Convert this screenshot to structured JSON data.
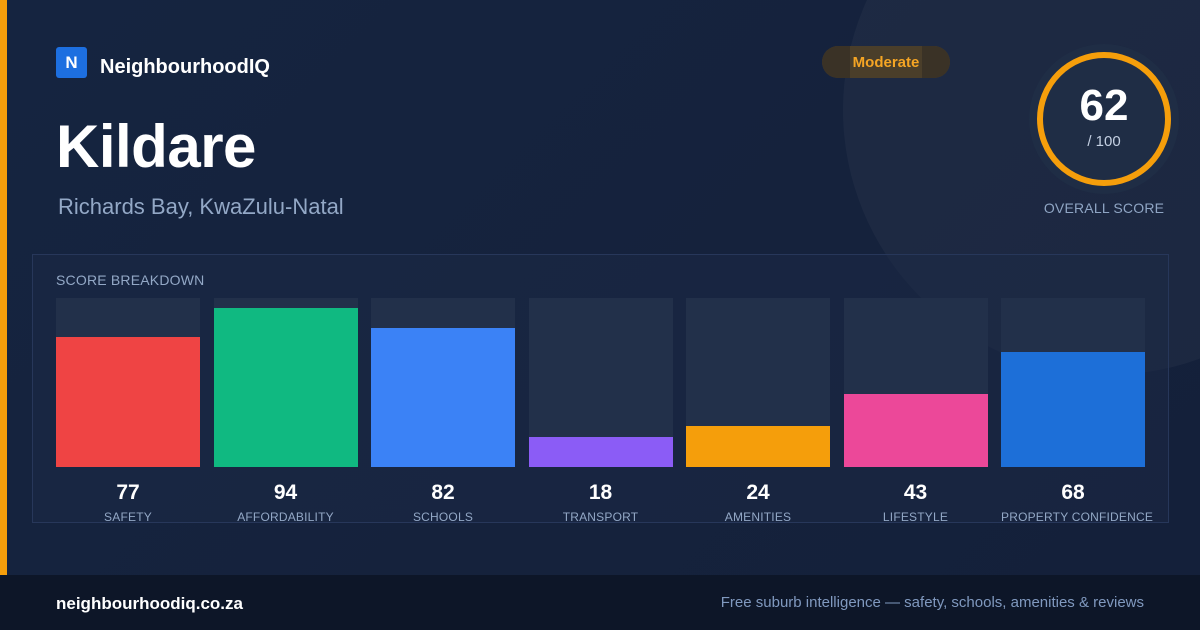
{
  "brand": {
    "logo_letter": "N",
    "name": "NeighbourhoodIQ",
    "accent_color": "#1d6fe0"
  },
  "header": {
    "title": "Kildare",
    "subtitle": "Richards Bay, KwaZulu-Natal",
    "badge": "Moderate",
    "badge_color": "#f5a524"
  },
  "overall": {
    "score": "62",
    "max": "/ 100",
    "caption": "OVERALL SCORE",
    "fraction": 0.62,
    "ring_color": "#f59e0b"
  },
  "breakdown": {
    "title": "SCORE BREAKDOWN",
    "scale_max": 100,
    "items": [
      {
        "label": "SAFETY",
        "value": 77,
        "display": "77",
        "color": "#ef4444"
      },
      {
        "label": "AFFORDABILITY",
        "value": 94,
        "display": "94",
        "color": "#10b981"
      },
      {
        "label": "SCHOOLS",
        "value": 82,
        "display": "82",
        "color": "#3b82f6"
      },
      {
        "label": "TRANSPORT",
        "value": 18,
        "display": "18",
        "color": "#8b5cf6"
      },
      {
        "label": "AMENITIES",
        "value": 24,
        "display": "24",
        "color": "#f59e0b"
      },
      {
        "label": "LIFESTYLE",
        "value": 43,
        "display": "43",
        "color": "#ec4899"
      },
      {
        "label": "PROPERTY CONFIDENCE",
        "value": 68,
        "display": "68",
        "color": "#1d6fd8"
      }
    ]
  },
  "footer": {
    "url": "neighbourhoodiq.co.za",
    "tagline": "Free suburb intelligence — safety, schools, amenities & reviews"
  }
}
